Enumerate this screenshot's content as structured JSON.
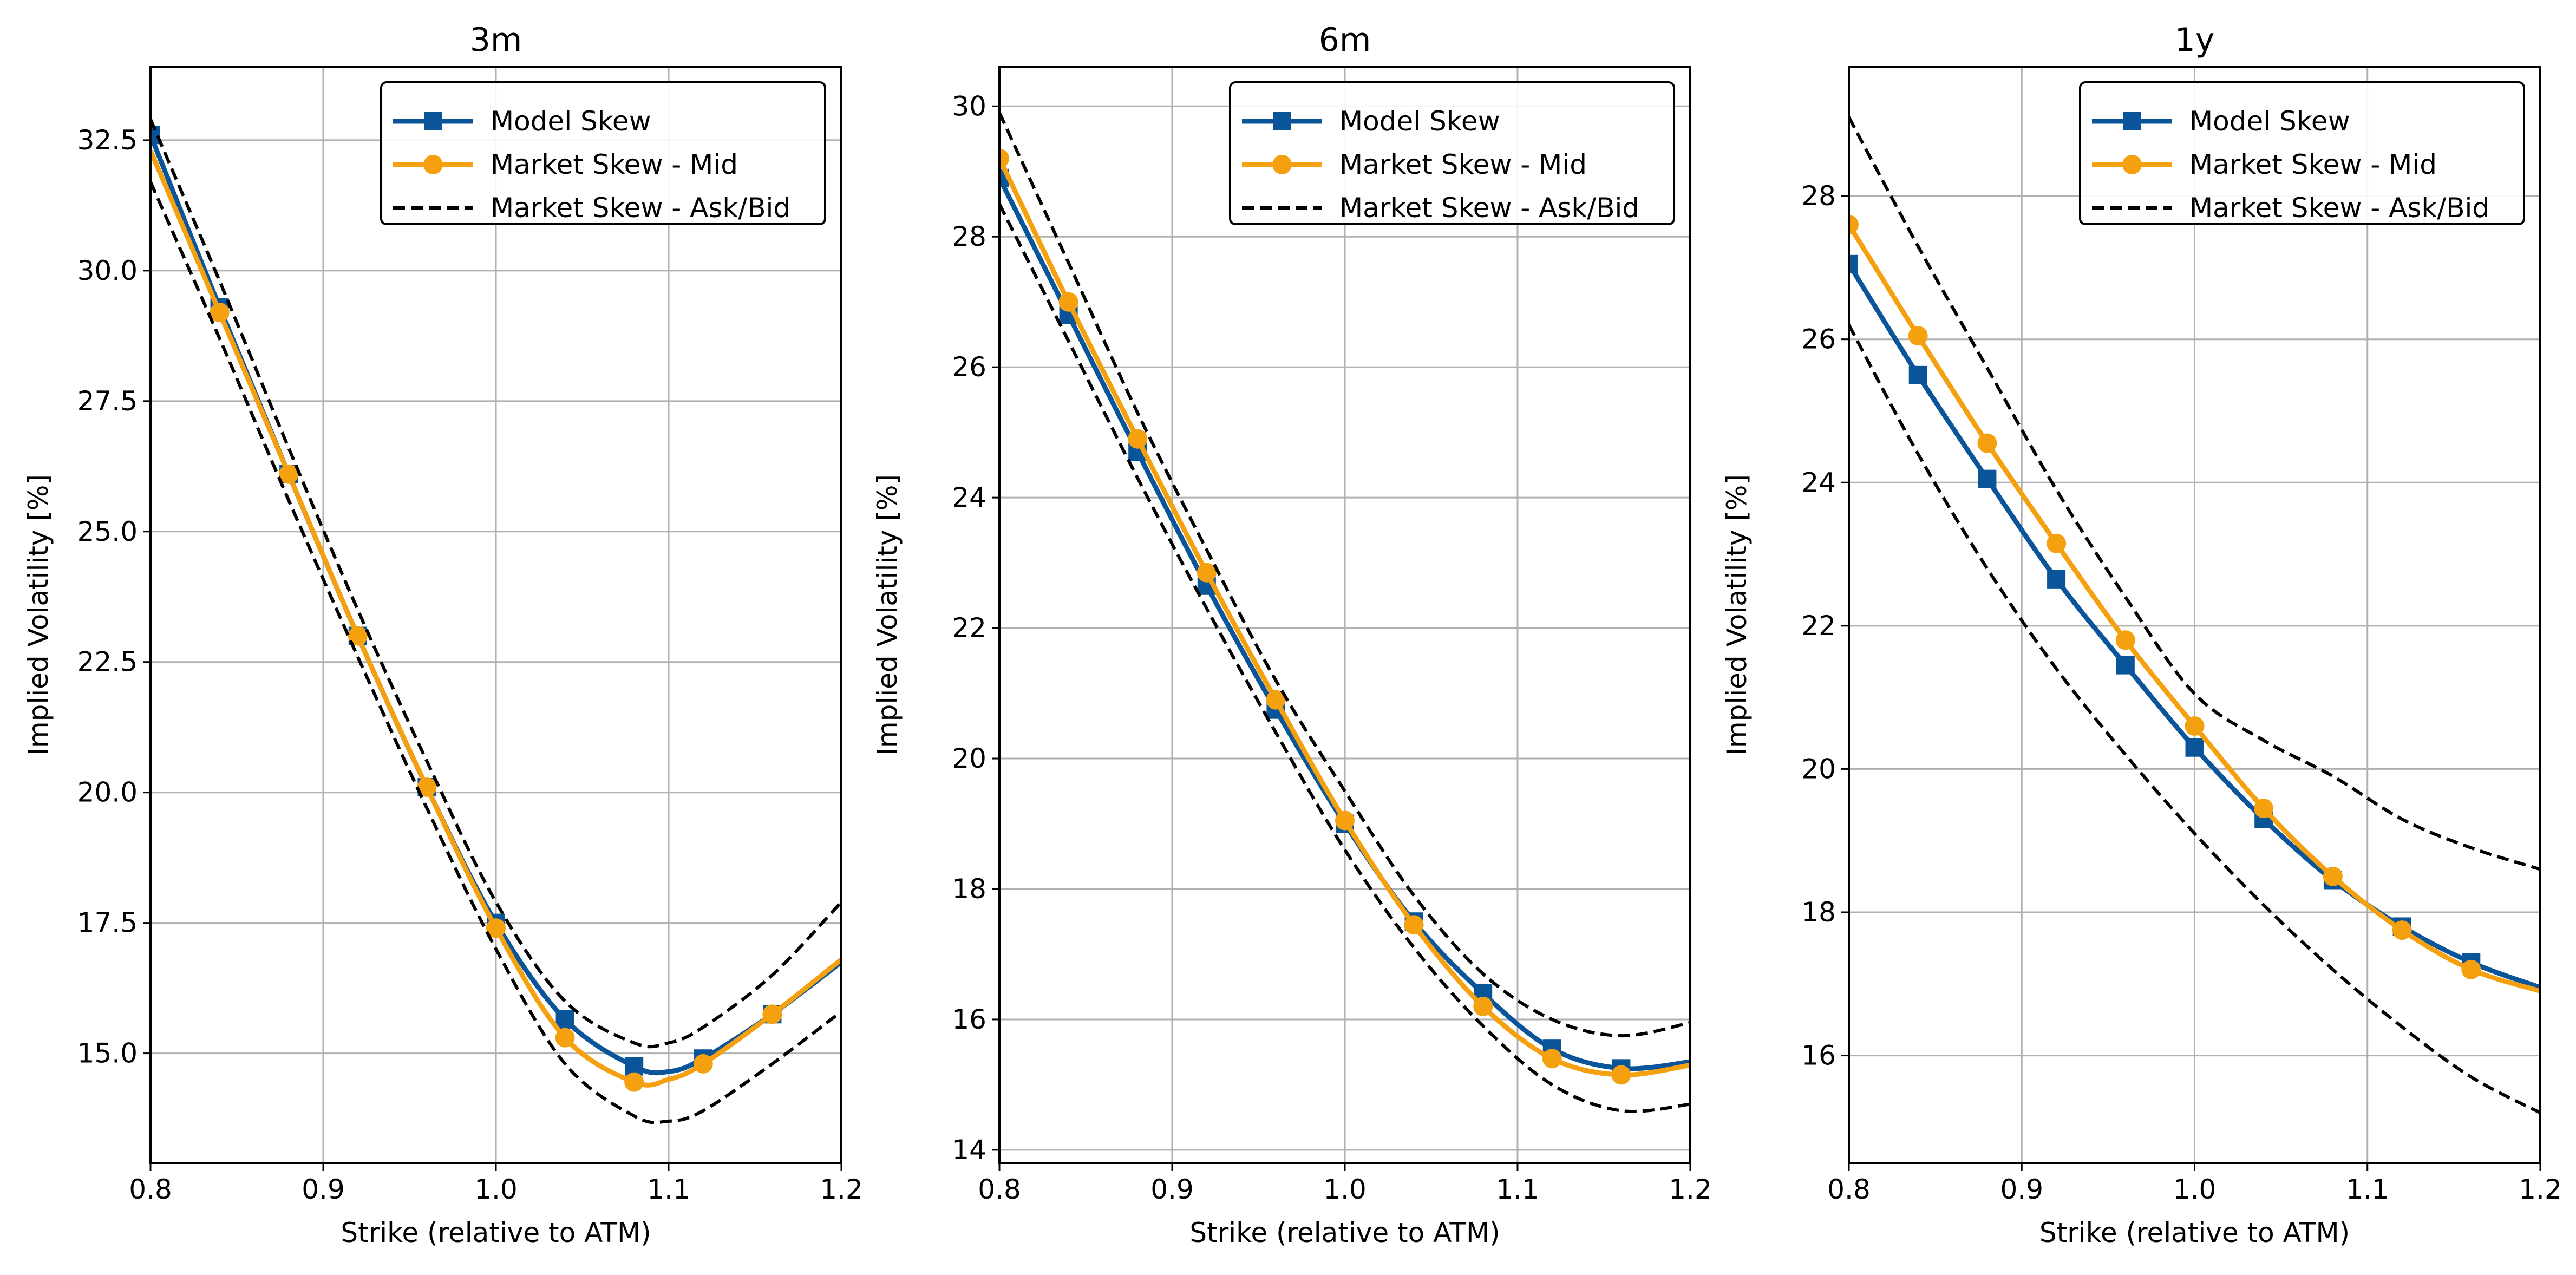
{
  "chart_data": [
    {
      "type": "line",
      "title": "3m",
      "xlabel": "Strike (relative to ATM)",
      "ylabel": "Implied Volatility [%]",
      "xlim": [
        0.8,
        1.2
      ],
      "ylim": [
        12.9,
        33.9
      ],
      "xticks": [
        "0.8",
        "0.9",
        "1.0",
        "1.1",
        "1.2"
      ],
      "yticks": [
        "15.0",
        "17.5",
        "20.0",
        "22.5",
        "25.0",
        "27.5",
        "30.0",
        "32.5"
      ],
      "grid": true,
      "legend_position": "top-right",
      "legend": [
        "Model Skew",
        "Market Skew - Mid",
        "Market Skew - Ask/Bid"
      ],
      "series": [
        {
          "name": "Model Skew",
          "color": "#0a559a",
          "marker": "square",
          "style": "solid",
          "x": [
            0.8,
            0.84,
            0.88,
            0.92,
            0.96,
            1.0,
            1.04,
            1.08,
            1.1,
            1.12,
            1.16,
            1.2
          ],
          "y": [
            32.6,
            29.3,
            26.1,
            23.0,
            20.1,
            17.5,
            15.65,
            14.75,
            14.65,
            14.9,
            15.75,
            16.75
          ],
          "markers_x": [
            0.8,
            0.84,
            0.88,
            0.92,
            0.96,
            1.0,
            1.04,
            1.08,
            1.12,
            1.16
          ]
        },
        {
          "name": "Market Skew - Mid",
          "color": "#f5a00f",
          "marker": "circle",
          "style": "solid",
          "x": [
            0.8,
            0.84,
            0.88,
            0.92,
            0.96,
            1.0,
            1.04,
            1.08,
            1.1,
            1.12,
            1.16,
            1.2
          ],
          "y": [
            32.3,
            29.2,
            26.1,
            23.0,
            20.1,
            17.4,
            15.3,
            14.45,
            14.5,
            14.8,
            15.75,
            16.8
          ],
          "markers_x": [
            0.84,
            0.88,
            0.92,
            0.96,
            1.0,
            1.04,
            1.08,
            1.12,
            1.16
          ]
        },
        {
          "name": "Market Skew - Ask/Bid",
          "color": "#000000",
          "marker": "none",
          "style": "dashed",
          "x": [
            0.8,
            0.84,
            0.88,
            0.92,
            0.96,
            1.0,
            1.04,
            1.08,
            1.1,
            1.12,
            1.16,
            1.2
          ],
          "y": [
            32.9,
            29.8,
            26.6,
            23.5,
            20.6,
            17.9,
            16.0,
            15.2,
            15.2,
            15.5,
            16.5,
            17.9
          ]
        },
        {
          "name": "",
          "color": "#000000",
          "marker": "none",
          "style": "dashed",
          "x": [
            0.8,
            0.84,
            0.88,
            0.92,
            0.96,
            1.0,
            1.04,
            1.08,
            1.1,
            1.12,
            1.16,
            1.2
          ],
          "y": [
            31.7,
            28.7,
            25.6,
            22.6,
            19.7,
            17.0,
            14.8,
            13.8,
            13.7,
            13.9,
            14.8,
            15.8
          ]
        }
      ]
    },
    {
      "type": "line",
      "title": "6m",
      "xlabel": "Strike (relative to ATM)",
      "ylabel": "Implied Volatility [%]",
      "xlim": [
        0.8,
        1.2
      ],
      "ylim": [
        13.8,
        30.6
      ],
      "xticks": [
        "0.8",
        "0.9",
        "1.0",
        "1.1",
        "1.2"
      ],
      "yticks": [
        "14",
        "16",
        "18",
        "20",
        "22",
        "24",
        "26",
        "28",
        "30"
      ],
      "grid": true,
      "legend_position": "top-right",
      "legend": [
        "Model Skew",
        "Market Skew - Mid",
        "Market Skew - Ask/Bid"
      ],
      "series": [
        {
          "name": "Model Skew",
          "color": "#0a559a",
          "marker": "square",
          "style": "solid",
          "x": [
            0.8,
            0.84,
            0.88,
            0.92,
            0.96,
            1.0,
            1.04,
            1.08,
            1.12,
            1.16,
            1.2
          ],
          "y": [
            28.9,
            26.8,
            24.7,
            22.65,
            20.75,
            19.0,
            17.5,
            16.4,
            15.55,
            15.25,
            15.35
          ],
          "markers_x": [
            0.8,
            0.84,
            0.88,
            0.92,
            0.96,
            1.0,
            1.04,
            1.08,
            1.12,
            1.16
          ]
        },
        {
          "name": "Market Skew - Mid",
          "color": "#f5a00f",
          "marker": "circle",
          "style": "solid",
          "x": [
            0.8,
            0.84,
            0.88,
            0.92,
            0.96,
            1.0,
            1.04,
            1.08,
            1.12,
            1.16,
            1.2
          ],
          "y": [
            29.2,
            27.0,
            24.9,
            22.85,
            20.9,
            19.05,
            17.45,
            16.2,
            15.4,
            15.15,
            15.3
          ],
          "markers_x": [
            0.8,
            0.84,
            0.88,
            0.92,
            0.96,
            1.0,
            1.04,
            1.08,
            1.12,
            1.16
          ]
        },
        {
          "name": "Market Skew - Ask/Bid",
          "color": "#000000",
          "marker": "none",
          "style": "dashed",
          "x": [
            0.8,
            0.84,
            0.88,
            0.92,
            0.96,
            1.0,
            1.04,
            1.08,
            1.12,
            1.16,
            1.2
          ],
          "y": [
            29.9,
            27.6,
            25.3,
            23.2,
            21.2,
            19.5,
            17.9,
            16.7,
            16.0,
            15.75,
            15.95
          ]
        },
        {
          "name": "",
          "color": "#000000",
          "marker": "none",
          "style": "dashed",
          "x": [
            0.8,
            0.84,
            0.88,
            0.92,
            0.96,
            1.0,
            1.04,
            1.08,
            1.12,
            1.16,
            1.2
          ],
          "y": [
            28.5,
            26.4,
            24.3,
            22.3,
            20.4,
            18.6,
            17.1,
            15.9,
            15.0,
            14.6,
            14.7
          ]
        }
      ]
    },
    {
      "type": "line",
      "title": "1y",
      "xlabel": "Strike (relative to ATM)",
      "ylabel": "Implied Volatility [%]",
      "xlim": [
        0.8,
        1.2
      ],
      "ylim": [
        14.5,
        29.8
      ],
      "xticks": [
        "0.8",
        "0.9",
        "1.0",
        "1.1",
        "1.2"
      ],
      "yticks": [
        "16",
        "18",
        "20",
        "22",
        "24",
        "26",
        "28"
      ],
      "grid": true,
      "legend_position": "top-right",
      "legend": [
        "Model Skew",
        "Market Skew - Mid",
        "Market Skew - Ask/Bid"
      ],
      "series": [
        {
          "name": "Model Skew",
          "color": "#0a559a",
          "marker": "square",
          "style": "solid",
          "x": [
            0.8,
            0.84,
            0.88,
            0.92,
            0.96,
            1.0,
            1.04,
            1.08,
            1.12,
            1.16,
            1.2
          ],
          "y": [
            27.05,
            25.5,
            24.05,
            22.65,
            21.45,
            20.3,
            19.3,
            18.45,
            17.8,
            17.3,
            16.95
          ],
          "markers_x": [
            0.8,
            0.84,
            0.88,
            0.92,
            0.96,
            1.0,
            1.04,
            1.08,
            1.12,
            1.16
          ]
        },
        {
          "name": "Market Skew - Mid",
          "color": "#f5a00f",
          "marker": "circle",
          "style": "solid",
          "x": [
            0.8,
            0.84,
            0.88,
            0.92,
            0.96,
            1.0,
            1.04,
            1.08,
            1.12,
            1.16,
            1.2
          ],
          "y": [
            27.6,
            26.05,
            24.55,
            23.15,
            21.8,
            20.6,
            19.45,
            18.5,
            17.75,
            17.2,
            16.9
          ],
          "markers_x": [
            0.8,
            0.84,
            0.88,
            0.92,
            0.96,
            1.0,
            1.04,
            1.08,
            1.12,
            1.16
          ]
        },
        {
          "name": "Market Skew - Ask/Bid",
          "color": "#000000",
          "marker": "none",
          "style": "dashed",
          "x": [
            0.8,
            0.84,
            0.88,
            0.92,
            0.96,
            1.0,
            1.04,
            1.08,
            1.12,
            1.16,
            1.2
          ],
          "y": [
            29.1,
            27.3,
            25.6,
            23.9,
            22.4,
            21.05,
            20.4,
            19.9,
            19.3,
            18.9,
            18.6
          ]
        },
        {
          "name": "",
          "color": "#000000",
          "marker": "none",
          "style": "dashed",
          "x": [
            0.8,
            0.84,
            0.88,
            0.92,
            0.96,
            1.0,
            1.04,
            1.08,
            1.12,
            1.16,
            1.2
          ],
          "y": [
            26.2,
            24.4,
            22.8,
            21.4,
            20.2,
            19.1,
            18.1,
            17.2,
            16.4,
            15.7,
            15.2
          ]
        }
      ]
    }
  ]
}
